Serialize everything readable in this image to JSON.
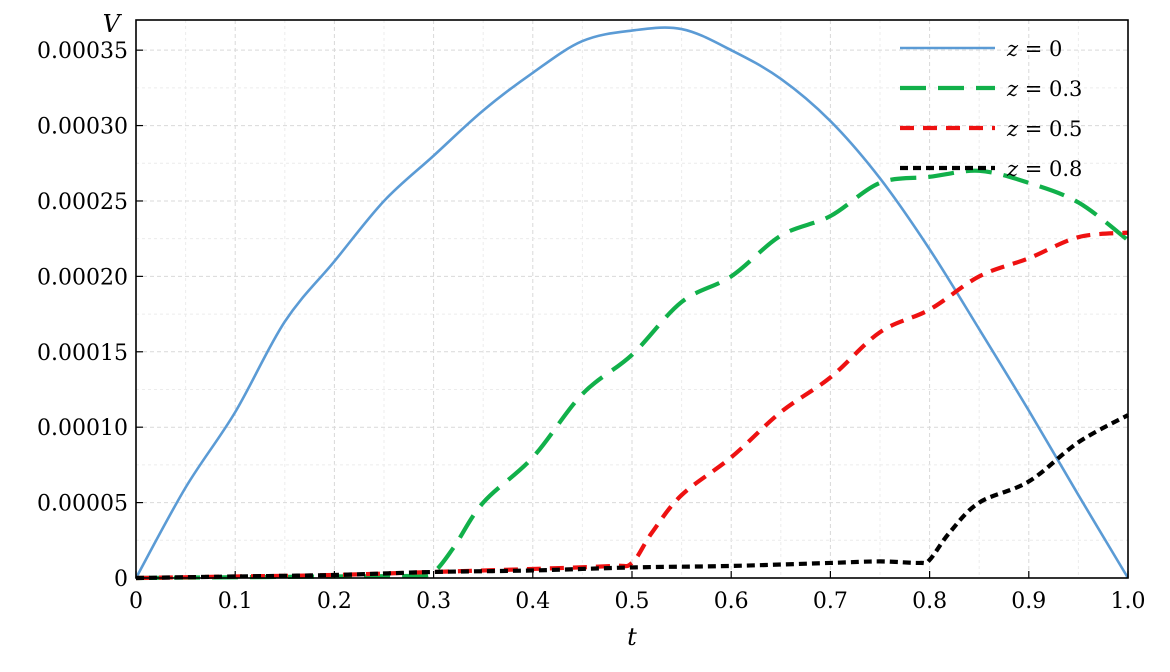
{
  "chart_data": {
    "type": "line",
    "title": "",
    "xlabel": "t",
    "ylabel": "V",
    "xlim": [
      0,
      1.0
    ],
    "ylim": [
      0,
      0.00037
    ],
    "x_ticks": [
      0,
      0.1,
      0.2,
      0.3,
      0.4,
      0.5,
      0.6,
      0.7,
      0.8,
      0.9,
      1.0
    ],
    "x_tick_labels": [
      "0",
      "0.1",
      "0.2",
      "0.3",
      "0.4",
      "0.5",
      "0.6",
      "0.7",
      "0.8",
      "0.9",
      "1.0"
    ],
    "y_ticks": [
      0,
      5e-05,
      0.0001,
      0.00015,
      0.0002,
      0.00025,
      0.0003,
      0.00035
    ],
    "y_tick_labels": [
      "0",
      "0.00005",
      "0.00010",
      "0.00015",
      "0.00020",
      "0.00025",
      "0.00030",
      "0.00035"
    ],
    "grid": true,
    "legend_position": "top-right",
    "series": [
      {
        "name": "z = 0",
        "legend_var": "z",
        "legend_value": "= 0",
        "color": "#5b9bd5",
        "style": "solid",
        "x": [
          0,
          0.05,
          0.1,
          0.15,
          0.2,
          0.25,
          0.3,
          0.35,
          0.4,
          0.45,
          0.5,
          0.55,
          0.6,
          0.65,
          0.7,
          0.75,
          0.8,
          0.85,
          0.9,
          0.95,
          1.0
        ],
        "y": [
          0,
          6e-05,
          0.00011,
          0.00017,
          0.00021,
          0.00025,
          0.00028,
          0.00031,
          0.000335,
          0.000356,
          0.000363,
          0.000364,
          0.00035,
          0.000331,
          0.000303,
          0.000265,
          0.000218,
          0.000165,
          0.000111,
          5.5e-05,
          0
        ]
      },
      {
        "name": "z = 0.3",
        "legend_var": "z",
        "legend_value": "= 0.3",
        "color": "#11b04a",
        "style": "long-dash",
        "x": [
          0,
          0.1,
          0.2,
          0.28,
          0.3,
          0.32,
          0.35,
          0.4,
          0.45,
          0.5,
          0.55,
          0.6,
          0.65,
          0.7,
          0.75,
          0.8,
          0.85,
          0.9,
          0.95,
          1.0
        ],
        "y": [
          0,
          5e-07,
          1e-06,
          1.5e-06,
          4e-06,
          2e-05,
          5e-05,
          8e-05,
          0.000122,
          0.000148,
          0.000183,
          0.0002,
          0.000227,
          0.00024,
          0.000262,
          0.000266,
          0.00027,
          0.000262,
          0.000249,
          0.000224
        ]
      },
      {
        "name": "z = 0.5",
        "legend_var": "z",
        "legend_value": "= 0.5",
        "color": "#ee1111",
        "style": "dash",
        "x": [
          0,
          0.1,
          0.2,
          0.3,
          0.4,
          0.48,
          0.5,
          0.52,
          0.55,
          0.6,
          0.65,
          0.7,
          0.75,
          0.8,
          0.85,
          0.9,
          0.95,
          1.0
        ],
        "y": [
          0,
          1e-06,
          2e-06,
          4e-06,
          6e-06,
          8e-06,
          1e-05,
          3e-05,
          5.5e-05,
          8e-05,
          0.00011,
          0.000133,
          0.000163,
          0.000178,
          0.0002,
          0.000212,
          0.000226,
          0.000229
        ]
      },
      {
        "name": "z = 0.8",
        "legend_var": "z",
        "legend_value": "= 0.8",
        "color": "#000000",
        "style": "short-dash",
        "x": [
          0,
          0.1,
          0.2,
          0.3,
          0.4,
          0.5,
          0.6,
          0.7,
          0.75,
          0.79,
          0.8,
          0.82,
          0.85,
          0.9,
          0.95,
          1.0
        ],
        "y": [
          0,
          1e-06,
          2e-06,
          4e-06,
          5e-06,
          7e-06,
          8e-06,
          1e-05,
          1.1e-05,
          1e-05,
          1.2e-05,
          3e-05,
          5e-05,
          6.4e-05,
          9e-05,
          0.000108
        ]
      }
    ]
  }
}
